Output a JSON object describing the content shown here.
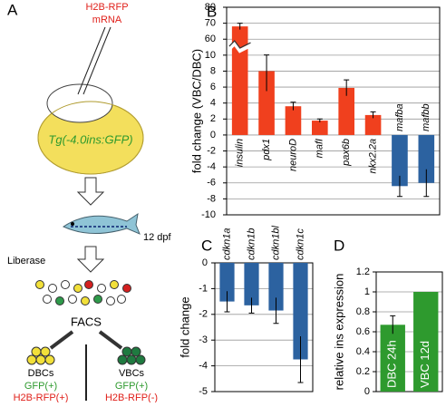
{
  "diagram": {
    "panel_label": "A",
    "injection_line1": "H2B-RFP",
    "injection_line2": "mRNA",
    "transgene": "Tg(-4.0ins:GFP)",
    "age": "12 dpf",
    "dissociation": "Liberase",
    "sorting": "FACS",
    "left_group": {
      "name": "DBCs",
      "marker1": "GFP(+)",
      "marker2": "H2B-RFP(+)"
    },
    "right_group": {
      "name": "VBCs",
      "marker1": "GFP(+)",
      "marker2": "H2B-RFP(-)"
    }
  },
  "chart_data": [
    {
      "type": "bar",
      "panel_label": "B",
      "ylabel": "fold change (VBC/DBC)",
      "categories": [
        "insulin",
        "pdx1",
        "neuroD",
        "mafI",
        "pax6b",
        "nkx2.2a",
        "mafba",
        "mafbb"
      ],
      "values": [
        68,
        8,
        3.6,
        1.8,
        5.9,
        2.5,
        -6.4,
        -6
      ],
      "errors": [
        2,
        2.5,
        0.5,
        0.2,
        1,
        0.4,
        1.3,
        1.7
      ],
      "colors": [
        "#f0401e",
        "#f0401e",
        "#f0401e",
        "#f0401e",
        "#f0401e",
        "#f0401e",
        "#2c62a0",
        "#2c62a0"
      ],
      "ylim": [
        -10,
        80
      ],
      "yticks": [
        -10,
        -8,
        -6,
        -4,
        -2,
        0,
        2,
        4,
        6,
        8,
        10,
        60,
        70,
        80
      ],
      "axis_break": [
        10,
        60
      ],
      "grid": true
    },
    {
      "type": "bar",
      "panel_label": "C",
      "ylabel": "fold change",
      "categories": [
        "cdkn1a",
        "cdkn1b",
        "cdkn1bl",
        "cdkn1c"
      ],
      "values": [
        -1.5,
        -1.65,
        -1.85,
        -3.75
      ],
      "errors": [
        0.4,
        0.3,
        0.5,
        0.9
      ],
      "colors": [
        "#2c62a0",
        "#2c62a0",
        "#2c62a0",
        "#2c62a0"
      ],
      "ylim": [
        -5,
        0
      ],
      "yticks": [
        -5,
        -4,
        -3,
        -2,
        -1,
        0
      ],
      "grid": true
    },
    {
      "type": "bar",
      "panel_label": "D",
      "ylabel": "relative ins expression",
      "categories": [
        "DBC 24h",
        "VBC 12d"
      ],
      "values": [
        0.67,
        1.0
      ],
      "errors": [
        0.09,
        null
      ],
      "colors": [
        "#2e9a2e",
        "#2e9a2e"
      ],
      "ylim": [
        0,
        1.2
      ],
      "yticks": [
        0,
        0.2,
        0.4,
        0.6,
        0.8,
        1,
        1.2
      ],
      "grid": true
    }
  ]
}
